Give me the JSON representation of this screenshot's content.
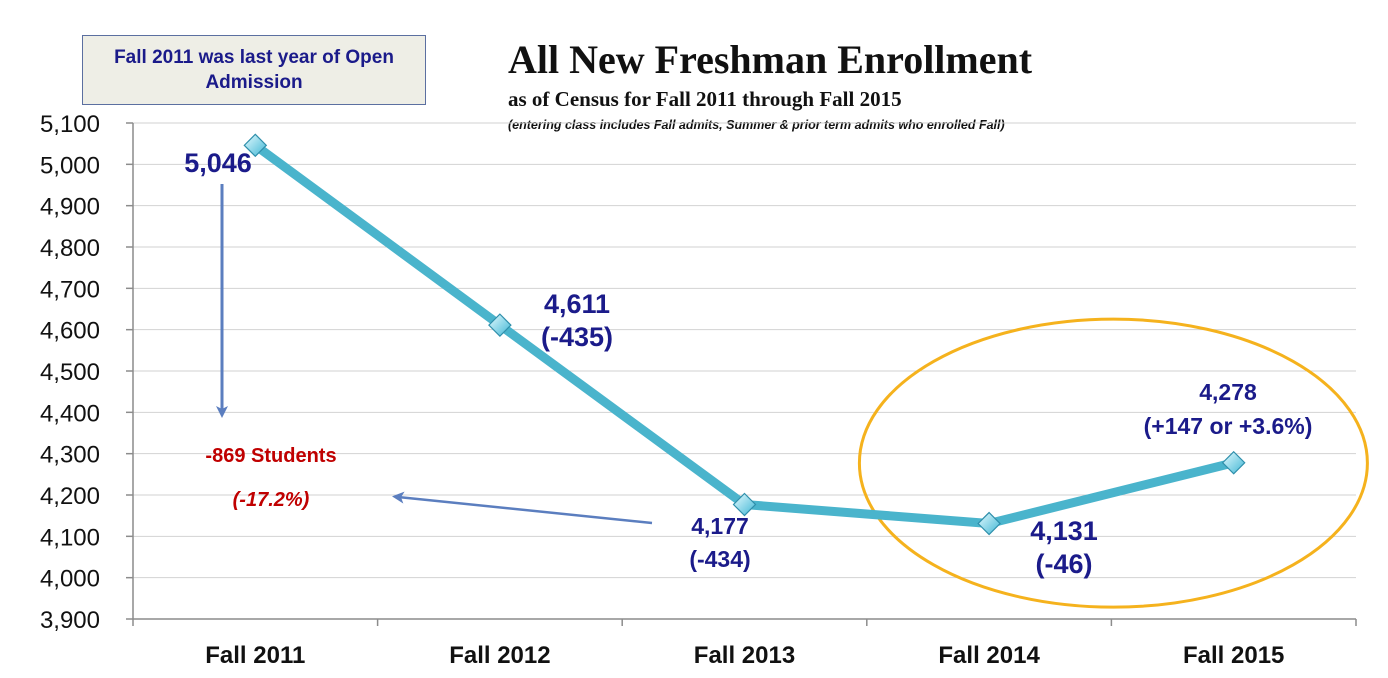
{
  "chart_data": {
    "type": "line",
    "title": "All New Freshman Enrollment",
    "subtitle": "as of Census for Fall 2011 through Fall 2015",
    "footnote": "(entering class includes Fall admits, Summer & prior term admits who enrolled Fall)",
    "categories": [
      "Fall 2011",
      "Fall 2012",
      "Fall 2013",
      "Fall 2014",
      "Fall 2015"
    ],
    "series": [
      {
        "name": "All New Freshman",
        "values": [
          5046,
          4611,
          4177,
          4131,
          4278
        ]
      }
    ],
    "ylim": [
      3900,
      5100
    ],
    "ytick_step": 100,
    "yticks": [
      "3,900",
      "4,000",
      "4,100",
      "4,200",
      "4,300",
      "4,400",
      "4,500",
      "4,600",
      "4,700",
      "4,800",
      "4,900",
      "5,000",
      "5,100"
    ],
    "grid": true,
    "line_color": "#4ab4cc",
    "marker_color": "#7fd8ee",
    "highlight_color": "#f5b21d",
    "arrow_color": "#5b7ebf",
    "data_labels": [
      {
        "value": "5,046",
        "change": ""
      },
      {
        "value": "4,611",
        "change": "(-435)"
      },
      {
        "value": "4,177",
        "change": "(-434)"
      },
      {
        "value": "4,131",
        "change": "(-46)"
      },
      {
        "value": "4,278",
        "change": "(+147 or +3.6%)"
      }
    ],
    "annotations": {
      "note_box": "Fall 2011 was last year of Open Admission",
      "decline_students": "-869 Students",
      "decline_percent": "(-17.2%)"
    }
  }
}
